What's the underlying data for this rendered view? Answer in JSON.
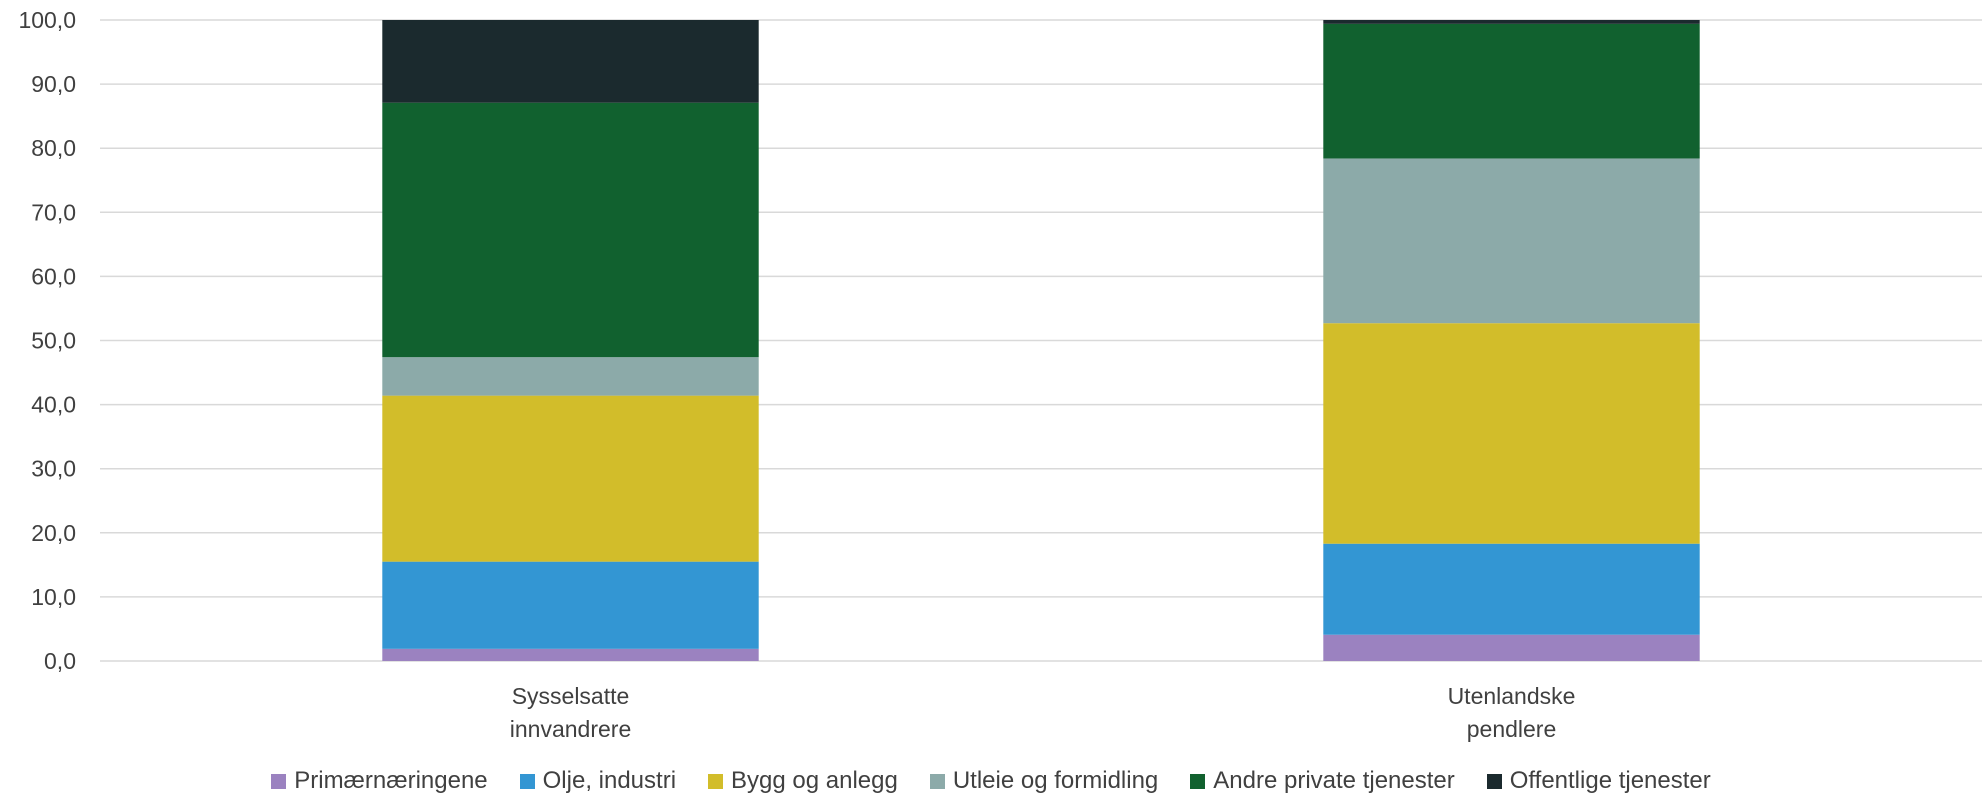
{
  "chart_data": {
    "type": "bar",
    "stacked": true,
    "title": "",
    "xlabel": "",
    "ylabel": "",
    "ylim": [
      0,
      100
    ],
    "yticks": [
      "0,0",
      "10,0",
      "20,0",
      "30,0",
      "40,0",
      "50,0",
      "60,0",
      "70,0",
      "80,0",
      "90,0",
      "100,0"
    ],
    "grid": true,
    "legend_position": "bottom",
    "categories": [
      [
        "Sysselsatte",
        "innvandrere"
      ],
      [
        "Utenlandske",
        "pendlere"
      ]
    ],
    "series": [
      {
        "name": "Primærnæringene",
        "color": "#9b82c0",
        "values": [
          1.9,
          4.1
        ]
      },
      {
        "name": "Olje, industri",
        "color": "#3396d3",
        "values": [
          13.6,
          14.2
        ]
      },
      {
        "name": "Bygg og anlegg",
        "color": "#d2bd2a",
        "values": [
          25.9,
          34.4
        ]
      },
      {
        "name": "Utleie og formidling",
        "color": "#8caaa9",
        "values": [
          6.0,
          25.7
        ]
      },
      {
        "name": "Andre private tjenester",
        "color": "#11612f",
        "values": [
          39.7,
          21.0
        ]
      },
      {
        "name": "Offentlige tjenester",
        "color": "#1b2a2e",
        "values": [
          12.9,
          0.6
        ]
      }
    ]
  }
}
